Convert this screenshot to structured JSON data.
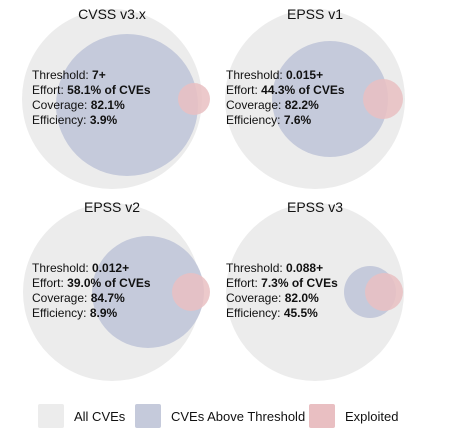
{
  "panels": [
    {
      "title": "CVSS v3.x",
      "threshold": "7+",
      "effort": "58.1% of CVEs",
      "coverage": "82.1%",
      "efficiency": "3.9%"
    },
    {
      "title": "EPSS v1",
      "threshold": "0.015+",
      "effort": "44.3% of CVEs",
      "coverage": "82.2%",
      "efficiency": "7.6%"
    },
    {
      "title": "EPSS v2",
      "threshold": "0.012+",
      "effort": "39.0% of CVEs",
      "coverage": "84.7%",
      "efficiency": "8.9%"
    },
    {
      "title": "EPSS v3",
      "threshold": "0.088+",
      "effort": "7.3% of CVEs",
      "coverage": "82.0%",
      "efficiency": "45.5%"
    }
  ],
  "labels": {
    "threshold": "Threshold:",
    "effort": "Effort:",
    "coverage": "Coverage:",
    "efficiency": "Efficiency:"
  },
  "legend": {
    "all_cves": "All CVEs",
    "above_threshold": "CVEs Above Threshold",
    "exploited": "Exploited"
  },
  "colors": {
    "all_cves": "#ececec",
    "above_threshold": "#c5cadb",
    "exploited": "#e9bfc2"
  }
}
